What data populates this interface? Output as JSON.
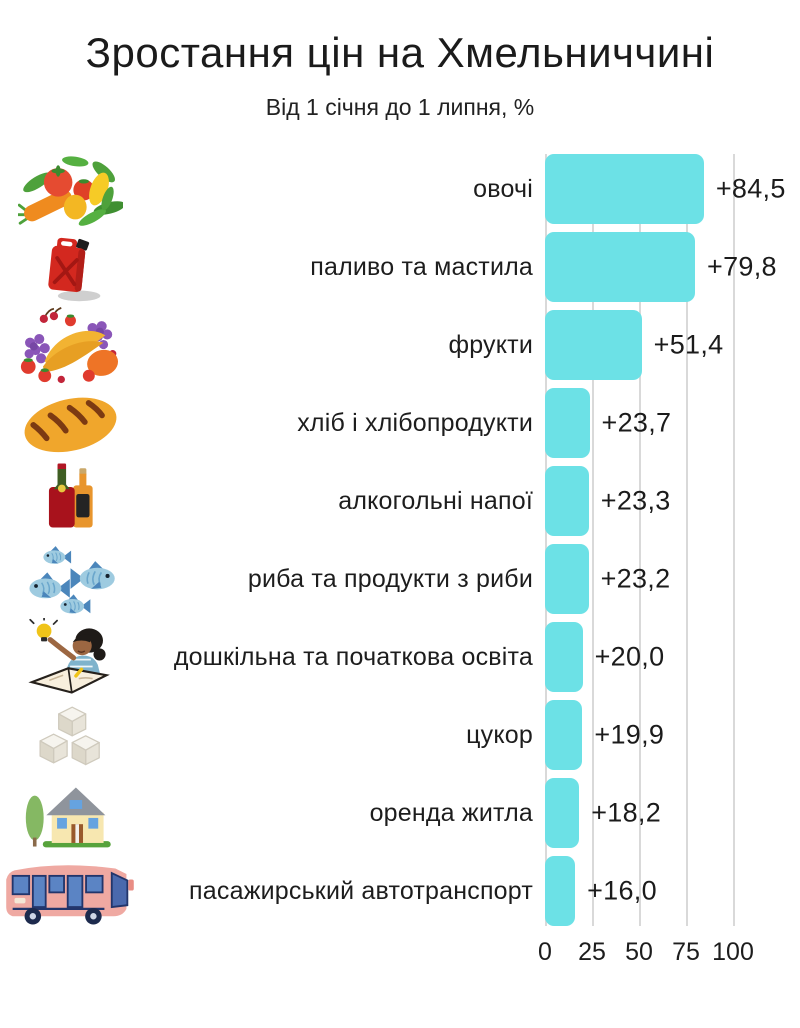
{
  "title": "Зростання цін на Хмельниччині",
  "subtitle": "Від 1 січня до 1 липня, %",
  "colors": {
    "bar": "#6ce1e6",
    "gridline": "#d9d9d9",
    "text": "#1b1b1b",
    "background": "#ffffff"
  },
  "chart_data": {
    "type": "bar",
    "orientation": "horizontal",
    "title": "Зростання цін на Хмельниччині",
    "subtitle": "Від 1 січня до 1 липня, %",
    "xlabel": "",
    "ylabel": "",
    "xlim": [
      0,
      100
    ],
    "xticks": [
      0,
      25,
      50,
      75,
      100
    ],
    "xtick_labels": [
      "0",
      "25",
      "50",
      "75",
      "100"
    ],
    "grid": true,
    "categories": [
      "овочі",
      "паливо та мастила",
      "фрукти",
      "хліб і хлібопродукти",
      "алкогольні напої",
      "риба та продукти з риби",
      "дошкільна та початкова освіта",
      "цукор",
      "оренда житла",
      "пасажирський автотранспорт"
    ],
    "values": [
      84.5,
      79.8,
      51.4,
      23.7,
      23.3,
      23.2,
      20.0,
      19.9,
      18.2,
      16.0
    ],
    "value_labels": [
      "+84,5",
      "+79,8",
      "+51,4",
      "+23,7",
      "+23,3",
      "+23,2",
      "+20,0",
      "+19,9",
      "+18,2",
      "+16,0"
    ],
    "icons": [
      "vegetables-icon",
      "fuel-canister-icon",
      "fruits-icon",
      "bread-icon",
      "alcohol-bottles-icon",
      "fish-icon",
      "education-icon",
      "sugar-cubes-icon",
      "house-icon",
      "bus-icon"
    ]
  }
}
